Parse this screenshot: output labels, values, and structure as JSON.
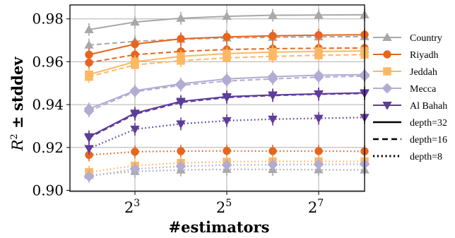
{
  "chart_data": {
    "type": "line",
    "xlabel": "#estimators",
    "ylabel_symbol": "R",
    "ylabel_power": "2",
    "ylabel_rest": " ± stddev",
    "x_scale": "log2",
    "x": [
      4,
      8,
      16,
      32,
      64,
      128,
      256
    ],
    "x_ticks": [
      {
        "value": 8,
        "base": "2",
        "exp": "3"
      },
      {
        "value": 32,
        "base": "2",
        "exp": "5"
      },
      {
        "value": 128,
        "base": "2",
        "exp": "7"
      }
    ],
    "xlim": [
      3.0,
      256
    ],
    "ylim": [
      0.8995,
      0.9865
    ],
    "y_ticks": [
      0.9,
      0.92,
      0.94,
      0.96,
      0.98
    ],
    "y_tick_labels": [
      "0.90",
      "0.92",
      "0.94",
      "0.96",
      "0.98"
    ],
    "grid": true,
    "legend_position": "right-outside",
    "series": [
      {
        "name": "Country",
        "color": "#a8a8a8",
        "marker": "triangle-up",
        "depth": 32,
        "values": [
          0.975,
          0.9785,
          0.9803,
          0.9812,
          0.9817,
          0.9818,
          0.9819
        ]
      },
      {
        "color": "#a8a8a8",
        "marker": "triangle-up",
        "depth": 16,
        "values": [
          0.9678,
          0.9695,
          0.9705,
          0.9711,
          0.9714,
          0.9716,
          0.9717
        ]
      },
      {
        "color": "#a8a8a8",
        "marker": "triangle-up",
        "depth": 8,
        "values": [
          0.907,
          0.9088,
          0.9095,
          0.9098,
          0.9097,
          0.9096,
          0.9095
        ]
      },
      {
        "name": "Riyadh",
        "color": "#e6661f",
        "marker": "circle",
        "depth": 32,
        "values": [
          0.9633,
          0.9682,
          0.9707,
          0.9716,
          0.9721,
          0.9724,
          0.9726
        ]
      },
      {
        "color": "#e6661f",
        "marker": "circle",
        "depth": 16,
        "values": [
          0.9596,
          0.9633,
          0.9648,
          0.9657,
          0.9661,
          0.9663,
          0.9664
        ]
      },
      {
        "color": "#e6661f",
        "marker": "circle",
        "depth": 8,
        "values": [
          0.9165,
          0.918,
          0.9183,
          0.9184,
          0.9183,
          0.9183,
          0.9182
        ]
      },
      {
        "name": "Jeddah",
        "color": "#fdb863",
        "marker": "square",
        "depth": 32,
        "values": [
          0.954,
          0.96,
          0.9625,
          0.9638,
          0.9645,
          0.9648,
          0.965
        ]
      },
      {
        "color": "#fdb863",
        "marker": "square",
        "depth": 16,
        "values": [
          0.953,
          0.9585,
          0.9605,
          0.9618,
          0.9625,
          0.963,
          0.9633
        ]
      },
      {
        "color": "#fdb863",
        "marker": "square",
        "depth": 8,
        "values": [
          0.9085,
          0.9115,
          0.9128,
          0.9133,
          0.9135,
          0.9135,
          0.9135
        ]
      },
      {
        "name": "Mecca",
        "color": "#b2abd2",
        "marker": "diamond",
        "depth": 32,
        "values": [
          0.938,
          0.9465,
          0.9497,
          0.952,
          0.953,
          0.9537,
          0.954
        ]
      },
      {
        "color": "#b2abd2",
        "marker": "diamond",
        "depth": 16,
        "values": [
          0.937,
          0.946,
          0.949,
          0.951,
          0.952,
          0.9528,
          0.9533
        ]
      },
      {
        "color": "#b2abd2",
        "marker": "diamond",
        "depth": 8,
        "values": [
          0.9065,
          0.91,
          0.9112,
          0.9118,
          0.912,
          0.9121,
          0.9122
        ]
      },
      {
        "name": "Al Bahah",
        "color": "#5e3c99",
        "marker": "triangle-down",
        "depth": 32,
        "values": [
          0.925,
          0.936,
          0.9415,
          0.9437,
          0.9445,
          0.945,
          0.9455
        ]
      },
      {
        "color": "#5e3c99",
        "marker": "triangle-down",
        "depth": 16,
        "values": [
          0.9245,
          0.9355,
          0.941,
          0.9433,
          0.9442,
          0.9448,
          0.9452
        ]
      },
      {
        "color": "#5e3c99",
        "marker": "triangle-down",
        "depth": 8,
        "values": [
          0.9195,
          0.9285,
          0.931,
          0.9325,
          0.9332,
          0.9336,
          0.934
        ]
      }
    ],
    "line_styles": [
      {
        "label": "depth=32",
        "depth": 32,
        "dash": "solid"
      },
      {
        "label": "depth=16",
        "depth": 16,
        "dash": "dashed"
      },
      {
        "label": "depth=8",
        "depth": 8,
        "dash": "dotted"
      }
    ]
  }
}
